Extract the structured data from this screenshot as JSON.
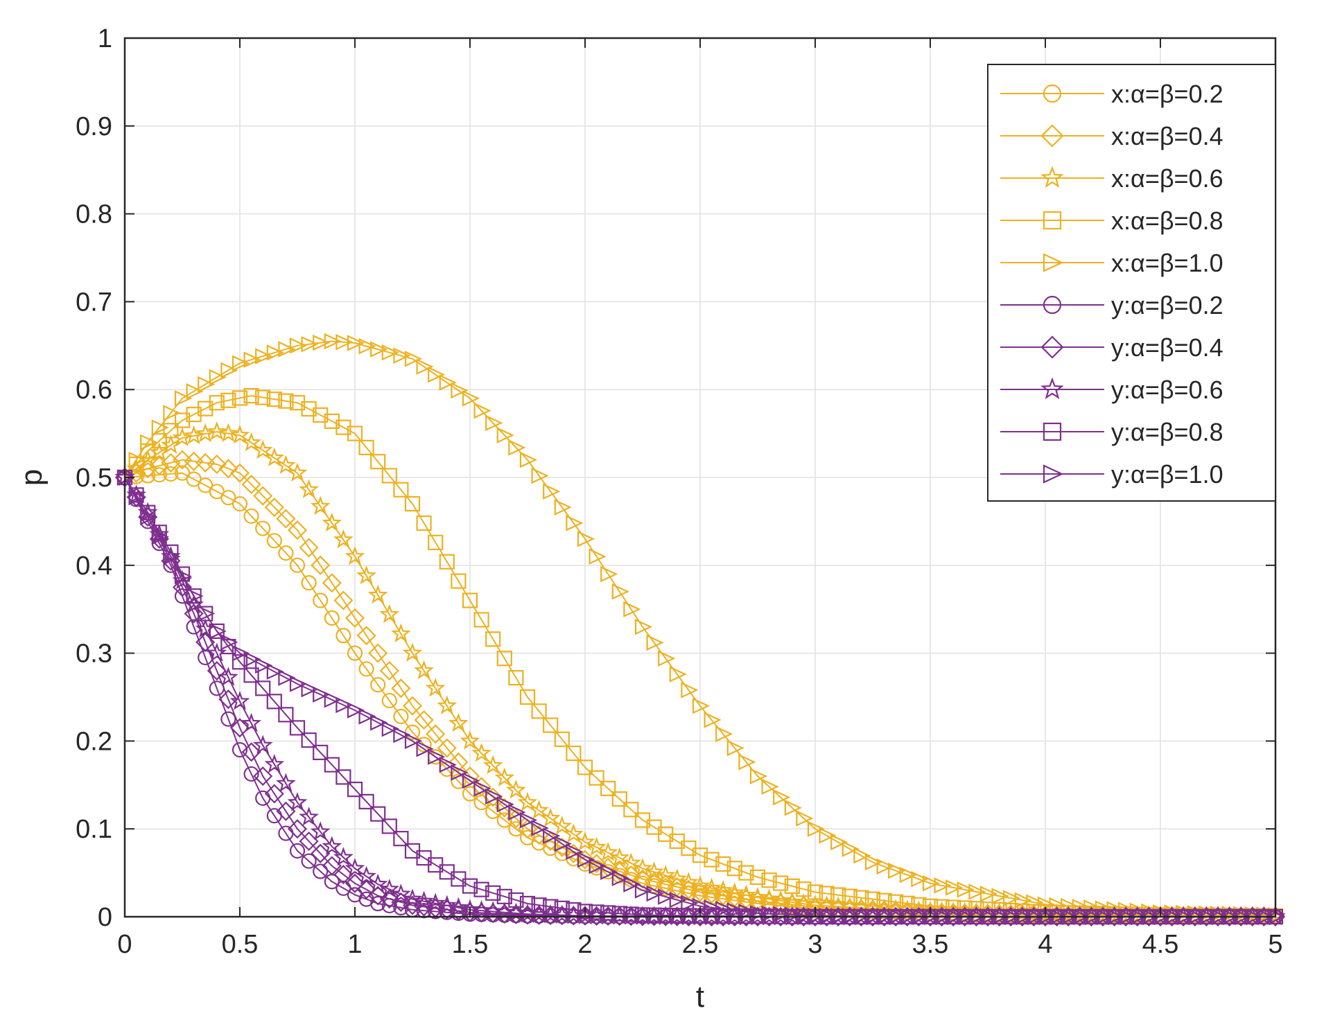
{
  "chart_data": {
    "type": "line",
    "title": "",
    "xlabel": "t",
    "ylabel": "p",
    "xlim": [
      0,
      5
    ],
    "ylim": [
      0,
      1
    ],
    "xticks": [
      "0",
      "0.5",
      "1",
      "1.5",
      "2",
      "2.5",
      "3",
      "3.5",
      "4",
      "4.5",
      "5"
    ],
    "yticks": [
      "0",
      "0.1",
      "0.2",
      "0.3",
      "0.4",
      "0.5",
      "0.6",
      "0.7",
      "0.8",
      "0.9",
      "1"
    ],
    "grid": true,
    "legend_position": "top-right",
    "marker_step": 0.05,
    "colors": {
      "x": "#EDB120",
      "y": "#7E2F8E"
    },
    "series": [
      {
        "name": "x:α=β=0.2",
        "group": "x",
        "marker": "circle",
        "x": [
          0,
          0.25,
          0.5,
          0.75,
          1,
          1.25,
          1.5,
          1.75,
          2,
          2.25,
          2.5,
          2.75,
          3,
          3.5,
          4,
          4.5,
          5
        ],
        "y": [
          0.5,
          0.505,
          0.47,
          0.4,
          0.3,
          0.21,
          0.14,
          0.09,
          0.06,
          0.038,
          0.024,
          0.015,
          0.009,
          0.004,
          0.002,
          0.001,
          0.0005
        ]
      },
      {
        "name": "x:α=β=0.4",
        "group": "x",
        "marker": "diamond",
        "x": [
          0,
          0.1,
          0.25,
          0.4,
          0.5,
          0.75,
          1,
          1.25,
          1.5,
          1.75,
          2,
          2.25,
          2.5,
          2.75,
          3,
          3.5,
          4,
          4.5,
          5
        ],
        "y": [
          0.5,
          0.51,
          0.52,
          0.515,
          0.505,
          0.44,
          0.34,
          0.24,
          0.16,
          0.1,
          0.065,
          0.043,
          0.028,
          0.018,
          0.011,
          0.005,
          0.002,
          0.001,
          0.0005
        ]
      },
      {
        "name": "x:α=β=0.6",
        "group": "x",
        "marker": "star",
        "x": [
          0,
          0.1,
          0.25,
          0.4,
          0.5,
          0.75,
          1,
          1.25,
          1.5,
          1.75,
          2,
          2.25,
          2.5,
          2.75,
          3,
          3.5,
          4,
          4.5,
          5
        ],
        "y": [
          0.5,
          0.52,
          0.545,
          0.552,
          0.548,
          0.505,
          0.41,
          0.3,
          0.2,
          0.13,
          0.085,
          0.055,
          0.035,
          0.022,
          0.013,
          0.006,
          0.003,
          0.001,
          0.0005
        ]
      },
      {
        "name": "x:α=β=0.8",
        "group": "x",
        "marker": "square",
        "x": [
          0,
          0.1,
          0.25,
          0.4,
          0.55,
          0.75,
          1,
          1.25,
          1.5,
          1.75,
          2,
          2.25,
          2.5,
          2.75,
          3,
          3.5,
          4,
          4.5,
          5
        ],
        "y": [
          0.5,
          0.53,
          0.565,
          0.585,
          0.593,
          0.585,
          0.55,
          0.47,
          0.36,
          0.25,
          0.17,
          0.11,
          0.07,
          0.045,
          0.028,
          0.012,
          0.005,
          0.002,
          0.001
        ]
      },
      {
        "name": "x:α=β=1.0",
        "group": "x",
        "marker": "triangle-right",
        "x": [
          0,
          0.1,
          0.25,
          0.5,
          0.75,
          0.9,
          1,
          1.25,
          1.5,
          1.75,
          2,
          2.25,
          2.5,
          2.75,
          3,
          3.25,
          3.5,
          4,
          4.5,
          5
        ],
        "y": [
          0.5,
          0.54,
          0.59,
          0.63,
          0.65,
          0.655,
          0.653,
          0.635,
          0.59,
          0.52,
          0.43,
          0.33,
          0.24,
          0.16,
          0.1,
          0.062,
          0.038,
          0.014,
          0.005,
          0.002
        ]
      },
      {
        "name": "y:α=β=0.2",
        "group": "y",
        "marker": "circle",
        "x": [
          0,
          0.1,
          0.2,
          0.3,
          0.4,
          0.5,
          0.6,
          0.75,
          0.9,
          1,
          1.1,
          1.25,
          1.5,
          1.75,
          2,
          2.5,
          3,
          4,
          5
        ],
        "y": [
          0.5,
          0.45,
          0.4,
          0.33,
          0.26,
          0.19,
          0.135,
          0.075,
          0.04,
          0.025,
          0.015,
          0.008,
          0.003,
          0.001,
          0.0005,
          0,
          0,
          0,
          0
        ]
      },
      {
        "name": "y:α=β=0.4",
        "group": "y",
        "marker": "diamond",
        "x": [
          0,
          0.1,
          0.2,
          0.3,
          0.4,
          0.5,
          0.6,
          0.75,
          0.9,
          1,
          1.1,
          1.25,
          1.5,
          1.75,
          2,
          2.5,
          3,
          4,
          5
        ],
        "y": [
          0.5,
          0.455,
          0.405,
          0.345,
          0.28,
          0.215,
          0.16,
          0.1,
          0.058,
          0.038,
          0.024,
          0.013,
          0.005,
          0.002,
          0.001,
          0,
          0,
          0,
          0
        ]
      },
      {
        "name": "y:α=β=0.6",
        "group": "y",
        "marker": "star",
        "x": [
          0,
          0.1,
          0.2,
          0.3,
          0.4,
          0.5,
          0.6,
          0.75,
          0.9,
          1,
          1.1,
          1.25,
          1.5,
          1.75,
          2,
          2.5,
          3,
          4,
          5
        ],
        "y": [
          0.5,
          0.46,
          0.41,
          0.355,
          0.3,
          0.245,
          0.195,
          0.13,
          0.08,
          0.055,
          0.037,
          0.02,
          0.008,
          0.003,
          0.001,
          0,
          0,
          0,
          0
        ]
      },
      {
        "name": "y:α=β=0.8",
        "group": "y",
        "marker": "square",
        "x": [
          0,
          0.1,
          0.2,
          0.3,
          0.4,
          0.5,
          0.75,
          1,
          1.25,
          1.5,
          1.75,
          2,
          2.25,
          2.5,
          3,
          4,
          5
        ],
        "y": [
          0.5,
          0.46,
          0.415,
          0.365,
          0.325,
          0.29,
          0.215,
          0.145,
          0.075,
          0.035,
          0.015,
          0.006,
          0.002,
          0.001,
          0,
          0,
          0
        ]
      },
      {
        "name": "y:α=β=1.0",
        "group": "y",
        "marker": "triangle-right",
        "x": [
          0,
          0.1,
          0.2,
          0.3,
          0.4,
          0.5,
          0.75,
          1,
          1.25,
          1.5,
          1.75,
          2,
          2.25,
          2.5,
          2.75,
          3,
          4,
          5
        ],
        "y": [
          0.5,
          0.455,
          0.41,
          0.365,
          0.325,
          0.3,
          0.265,
          0.235,
          0.2,
          0.155,
          0.11,
          0.065,
          0.03,
          0.012,
          0.004,
          0.001,
          0,
          0
        ]
      }
    ]
  }
}
